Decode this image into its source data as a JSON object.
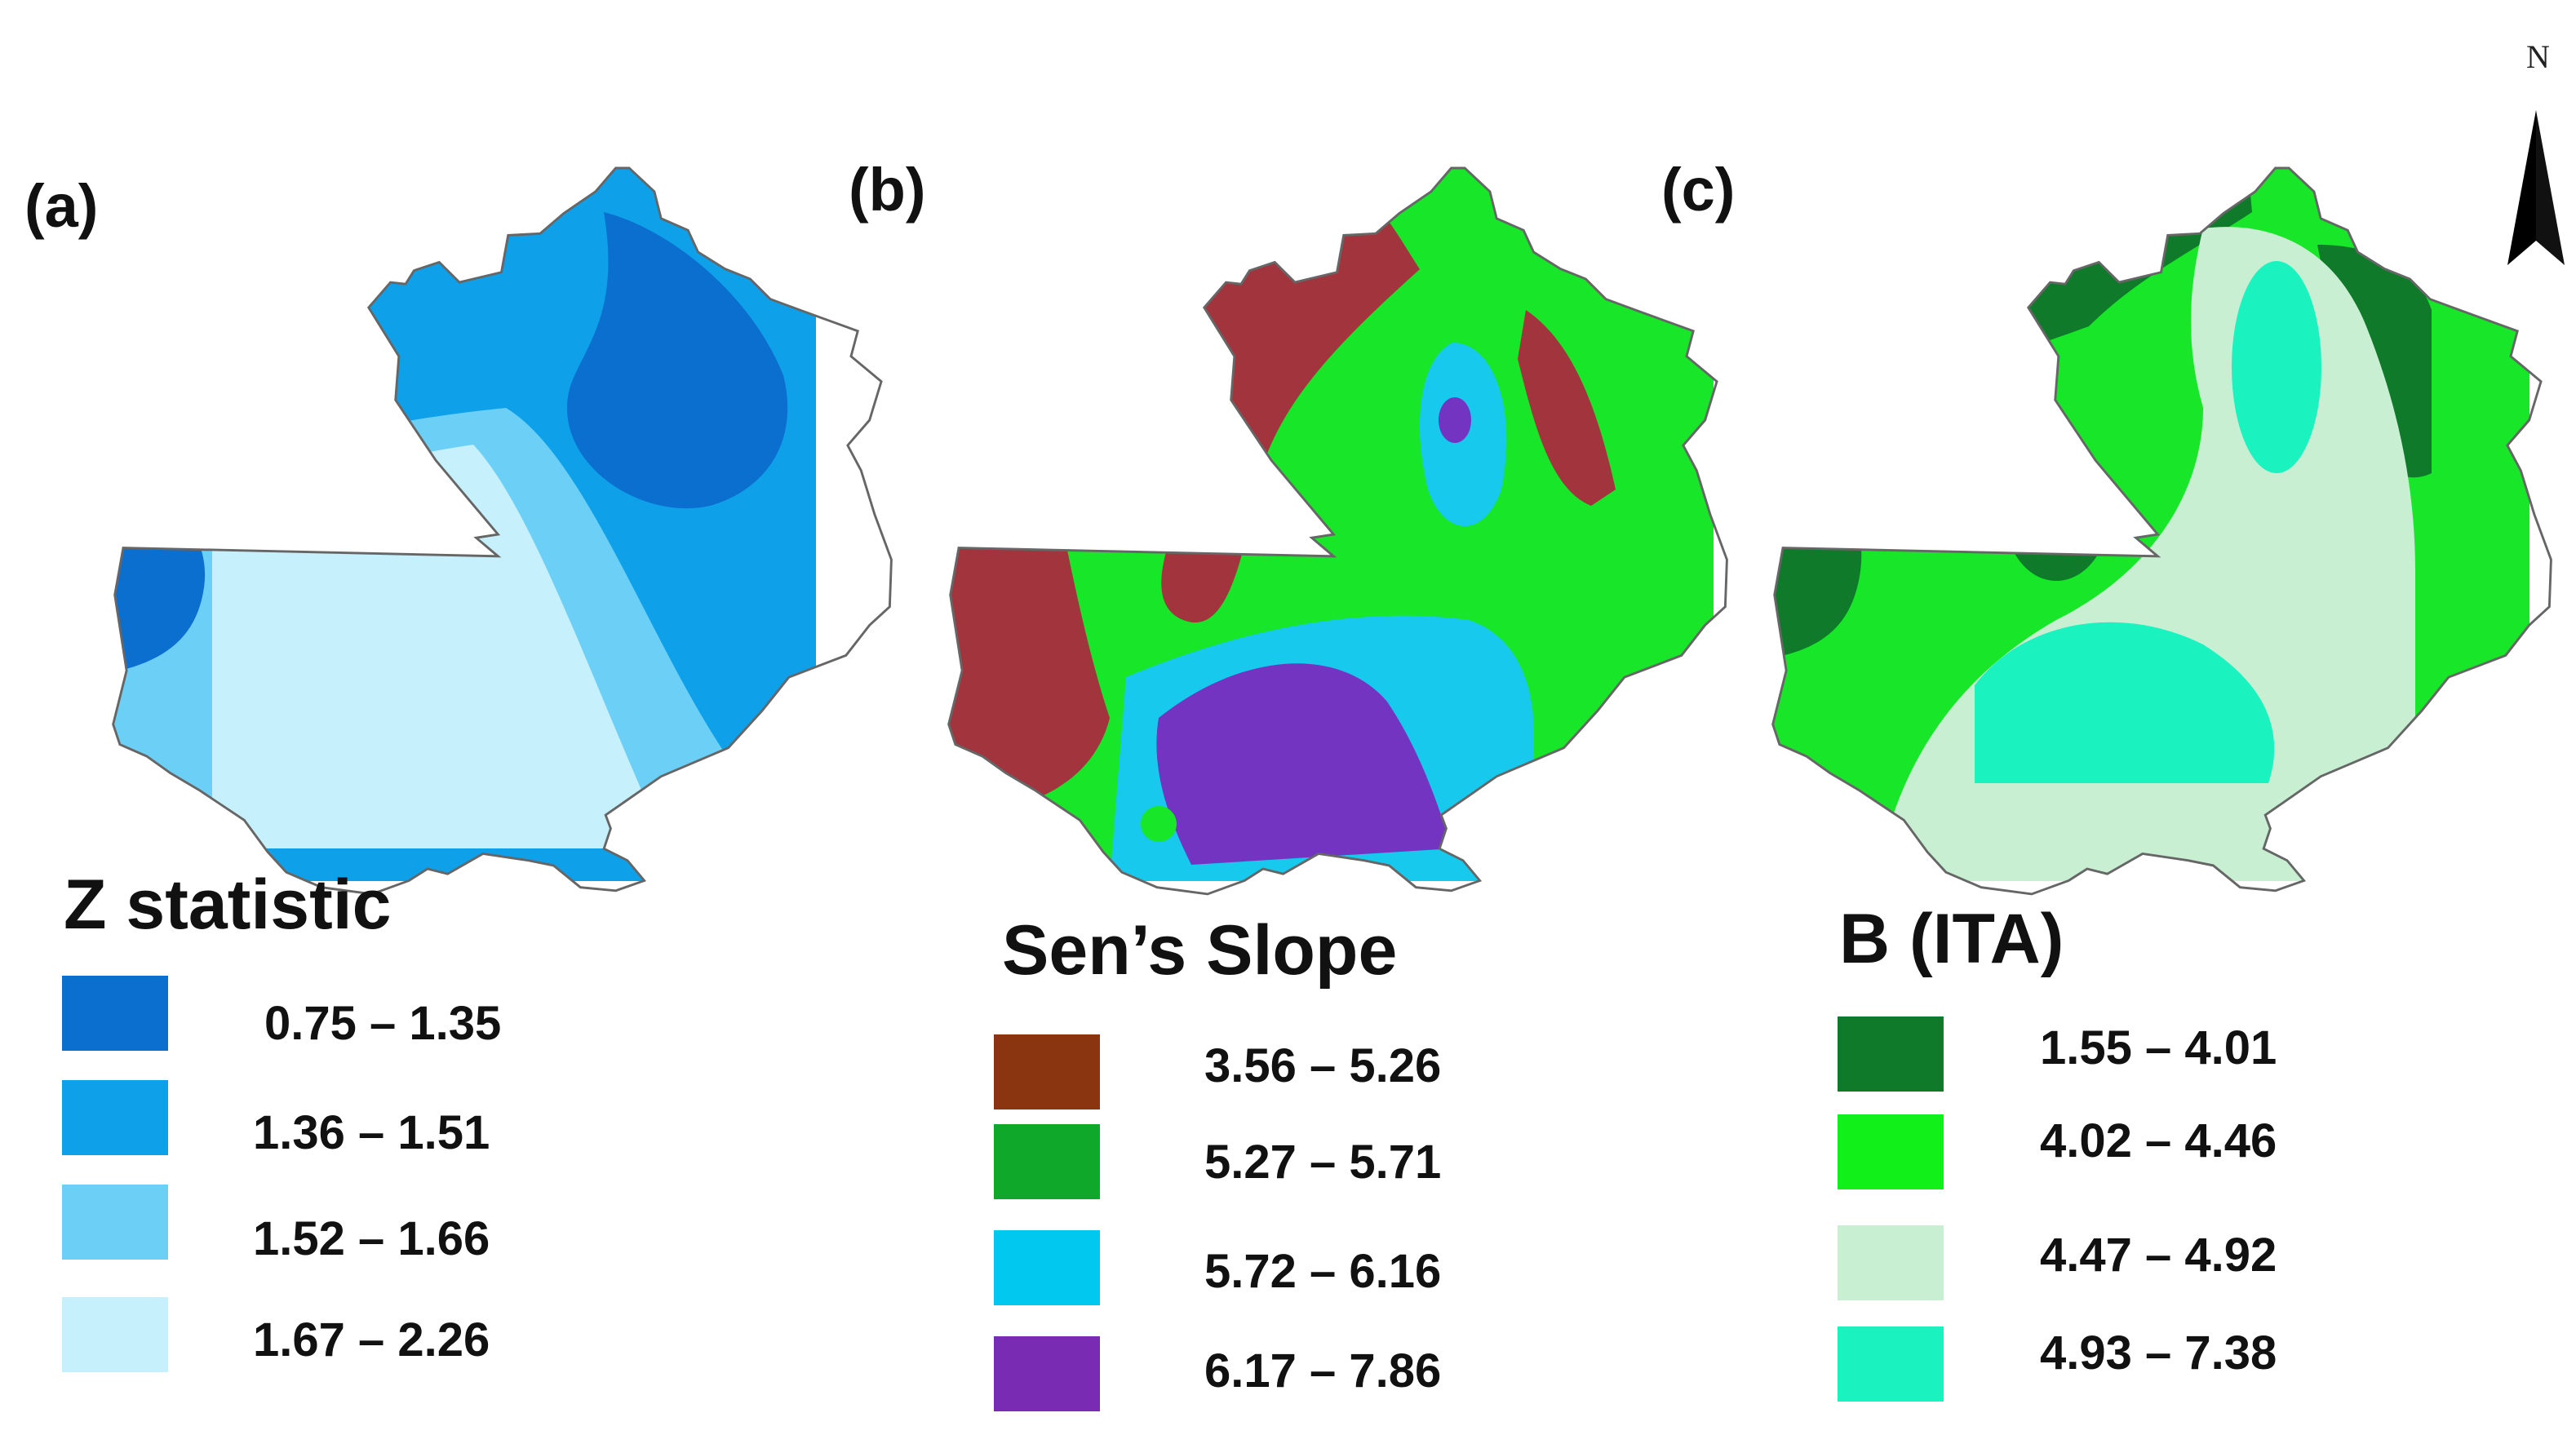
{
  "panels": [
    {
      "label": "(a)",
      "legend_title": "Z statistic",
      "classes": [
        {
          "range": "0.75 – 1.35",
          "color": "#0a6fce"
        },
        {
          "range": "1.36 – 1.51",
          "color": "#0fa0ea"
        },
        {
          "range": "1.52 – 1.66",
          "color": "#6ccff5"
        },
        {
          "range": "1.67 – 2.26",
          "color": "#c6f0fb"
        }
      ]
    },
    {
      "label": "(b)",
      "legend_title": "Sen’s Slope",
      "classes": [
        {
          "range": "3.56 – 5.26",
          "color": "#8b3410"
        },
        {
          "range": "5.27 – 5.71",
          "color": "#10a82a"
        },
        {
          "range": "5.72 – 6.16",
          "color": "#00c8ee"
        },
        {
          "range": "6.17 – 7.86",
          "color": "#7a2bb4"
        }
      ]
    },
    {
      "label": "(c)",
      "legend_title": "B (ITA)",
      "classes": [
        {
          "range": "1.55 – 4.01",
          "color": "#0f7a2a"
        },
        {
          "range": "4.02 – 4.46",
          "color": "#12f01a"
        },
        {
          "range": "4.47 – 4.92",
          "color": "#c8efd2"
        },
        {
          "range": "4.93 – 7.38",
          "color": "#1af2c0"
        }
      ]
    }
  ],
  "map_colors": {
    "slope_map_brown": "#a2343e",
    "slope_map_green": "#18e628",
    "slope_map_blue": "#18c9ee",
    "slope_map_purple": "#7334c2"
  },
  "north_arrow": {
    "letter": "N",
    "icon": "north-arrow-icon"
  }
}
